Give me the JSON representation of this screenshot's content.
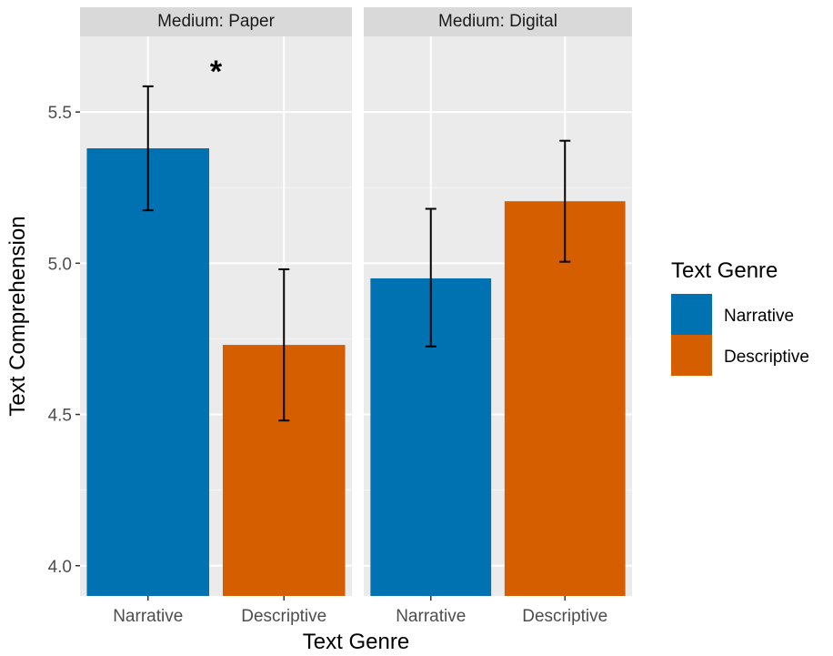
{
  "chart_data": {
    "type": "bar",
    "xlabel": "Text Genre",
    "ylabel": "Text Comprehension",
    "ylim": [
      3.9,
      5.75
    ],
    "yticks": [
      4.0,
      4.5,
      5.0,
      5.5
    ],
    "ytick_labels": [
      "4.0",
      "4.5",
      "5.0",
      "5.5"
    ],
    "categories": [
      "Narrative",
      "Descriptive"
    ],
    "legend": {
      "title": "Text Genre",
      "placement": "right",
      "entries": [
        {
          "label": "Narrative",
          "color": "#0072B2"
        },
        {
          "label": "Descriptive",
          "color": "#D55E00"
        }
      ]
    },
    "facets": [
      {
        "strip": "Medium: Paper",
        "values": [
          5.38,
          4.73
        ],
        "err_low": [
          5.175,
          4.48
        ],
        "err_high": [
          5.585,
          4.98
        ],
        "annotation": {
          "text": "*"
        }
      },
      {
        "strip": "Medium: Digital",
        "values": [
          4.95,
          5.205
        ],
        "err_low": [
          4.725,
          5.005
        ],
        "err_high": [
          5.18,
          5.405
        ]
      }
    ],
    "grid": true
  }
}
